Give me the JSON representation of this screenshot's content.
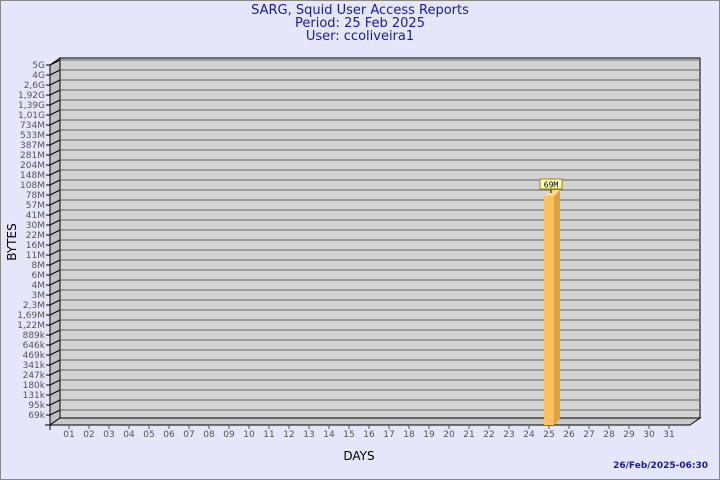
{
  "header": {
    "title": "SARG, Squid User Access Reports",
    "period": "Period: 25 Feb 2025",
    "user": "User: ccoliveira1"
  },
  "footer": {
    "timestamp": "26/Feb/2025-06:30"
  },
  "chart_data": {
    "type": "bar",
    "xlabel": "DAYS",
    "ylabel": "BYTES",
    "y_scale": "log",
    "categories": [
      "01",
      "02",
      "03",
      "04",
      "05",
      "06",
      "07",
      "08",
      "09",
      "10",
      "11",
      "12",
      "13",
      "14",
      "15",
      "16",
      "17",
      "18",
      "19",
      "20",
      "21",
      "22",
      "23",
      "24",
      "25",
      "26",
      "27",
      "28",
      "29",
      "30",
      "31"
    ],
    "y_tick_labels": [
      "5G",
      "4G",
      "2,6G",
      "1,92G",
      "1,39G",
      "1,01G",
      "734M",
      "533M",
      "387M",
      "281M",
      "204M",
      "148M",
      "108M",
      "78M",
      "57M",
      "41M",
      "30M",
      "22M",
      "16M",
      "11M",
      "8M",
      "6M",
      "4M",
      "3M",
      "2,3M",
      "1,69M",
      "1,22M",
      "889k",
      "646k",
      "469k",
      "341k",
      "247k",
      "180k",
      "131k",
      "95k",
      "69k"
    ],
    "bars": [
      {
        "day": "25",
        "value_label": "69M"
      }
    ],
    "grid": true,
    "colors": {
      "bar": "#ffc060",
      "bar_side": "#e0a040",
      "wall": "#d3d3d3",
      "background": "#e6e6fa",
      "title": "#1a1a9c",
      "label_box": "#ffffc0"
    }
  }
}
